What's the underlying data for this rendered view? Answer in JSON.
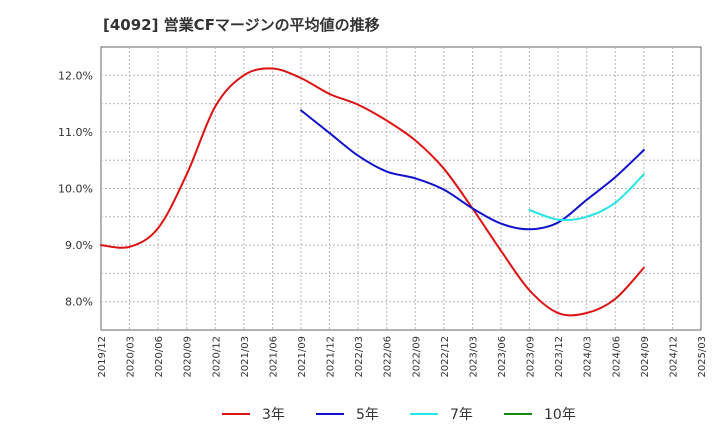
{
  "title": "[4092]  営業CFマージンの平均値の推移",
  "chart_data": {
    "type": "line",
    "title": "[4092]  営業CFマージンの平均値の推移",
    "xlabel": "",
    "ylabel": "",
    "x": [
      "2019/12",
      "2020/03",
      "2020/06",
      "2020/09",
      "2020/12",
      "2021/03",
      "2021/06",
      "2021/09",
      "2021/12",
      "2022/03",
      "2022/06",
      "2022/09",
      "2022/12",
      "2023/03",
      "2023/06",
      "2023/09",
      "2023/12",
      "2024/03",
      "2024/06",
      "2024/09",
      "2024/12",
      "2025/03"
    ],
    "ylim": [
      7.5,
      12.5
    ],
    "yticks": [
      8.0,
      9.0,
      10.0,
      11.0,
      12.0
    ],
    "ytick_labels": [
      "8.0%",
      "9.0%",
      "10.0%",
      "11.0%",
      "12.0%"
    ],
    "grid": true,
    "legend_position": "bottom",
    "series": [
      {
        "name": "3年",
        "color": "#dd1111",
        "values": [
          9.0,
          8.97,
          9.3,
          10.25,
          11.45,
          12.0,
          12.12,
          11.95,
          11.67,
          11.48,
          11.2,
          10.85,
          10.35,
          9.65,
          8.9,
          8.2,
          7.8,
          7.8,
          8.05,
          8.6,
          null,
          null
        ]
      },
      {
        "name": "5年",
        "color": "#1111cc",
        "values": [
          null,
          null,
          null,
          null,
          null,
          null,
          null,
          11.38,
          10.98,
          10.58,
          10.3,
          10.18,
          9.98,
          9.65,
          9.38,
          9.28,
          9.4,
          9.8,
          10.2,
          10.68,
          null,
          null
        ]
      },
      {
        "name": "7年",
        "color": "#22e5e5",
        "values": [
          null,
          null,
          null,
          null,
          null,
          null,
          null,
          null,
          null,
          null,
          null,
          null,
          null,
          null,
          null,
          9.62,
          9.45,
          9.5,
          9.75,
          10.25,
          null,
          null
        ]
      },
      {
        "name": "10年",
        "color": "#118811",
        "values": [
          null,
          null,
          null,
          null,
          null,
          null,
          null,
          null,
          null,
          null,
          null,
          null,
          null,
          null,
          null,
          null,
          null,
          null,
          null,
          null,
          null,
          null
        ]
      }
    ]
  }
}
